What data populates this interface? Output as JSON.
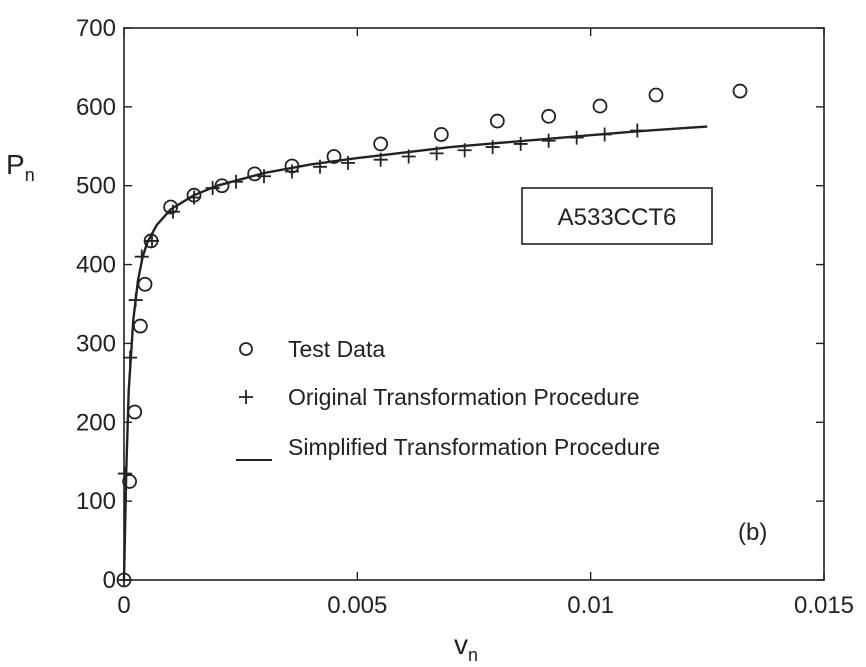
{
  "chart_data": {
    "type": "scatter",
    "xlabel": "v",
    "xlabel_sub": "n",
    "ylabel": "P",
    "ylabel_sub": "n",
    "xlim": [
      0,
      0.015
    ],
    "ylim": [
      0,
      700
    ],
    "x_ticks": [
      0,
      0.005,
      0.01,
      0.015
    ],
    "x_tick_labels": [
      "0",
      "0.005",
      "0.01",
      "0.015"
    ],
    "y_ticks": [
      0,
      100,
      200,
      300,
      400,
      500,
      600,
      700
    ],
    "y_tick_labels": [
      "0",
      "100",
      "200",
      "300",
      "400",
      "500",
      "600",
      "700"
    ],
    "grid": false,
    "legend_position": "center-left",
    "annotations": [
      "A533CCT6",
      "(b)"
    ],
    "series": [
      {
        "name": "Test Data",
        "marker": "circle",
        "x": [
          0,
          0.00012,
          0.00023,
          0.00035,
          0.00045,
          0.00058,
          0.001,
          0.0015,
          0.0021,
          0.0028,
          0.0036,
          0.0045,
          0.0055,
          0.0068,
          0.008,
          0.0091,
          0.0102,
          0.0114,
          0.0132
        ],
        "y": [
          0,
          125,
          213,
          322,
          375,
          430,
          473,
          488,
          500,
          515,
          525,
          537,
          553,
          565,
          582,
          588,
          601,
          615,
          620
        ]
      },
      {
        "name": "Original Transformation Procedure",
        "marker": "plus",
        "x": [
          0,
          2e-05,
          0.00013,
          0.00025,
          0.00038,
          0.0006,
          0.00105,
          0.0015,
          0.0019,
          0.0024,
          0.003,
          0.0036,
          0.0042,
          0.0048,
          0.0055,
          0.0061,
          0.0067,
          0.0073,
          0.0079,
          0.0085,
          0.0091,
          0.0097,
          0.0103,
          0.011
        ],
        "y": [
          0,
          135,
          282,
          355,
          410,
          430,
          467,
          485,
          497,
          505,
          512,
          518,
          524,
          529,
          533,
          537,
          541,
          545,
          549,
          553,
          557,
          561,
          565,
          570
        ]
      },
      {
        "name": "Simplified Transformation Procedure",
        "marker": "line",
        "x": [
          0,
          5e-05,
          0.0001,
          0.0002,
          0.0003,
          0.0004,
          0.0005,
          0.0007,
          0.001,
          0.0015,
          0.002,
          0.003,
          0.004,
          0.005,
          0.006,
          0.007,
          0.008,
          0.009,
          0.01,
          0.011,
          0.012,
          0.0125
        ],
        "y": [
          0,
          140,
          240,
          330,
          380,
          410,
          428,
          450,
          470,
          488,
          500,
          516,
          527,
          535,
          542,
          549,
          554,
          559,
          564,
          569,
          573,
          575
        ]
      }
    ]
  }
}
